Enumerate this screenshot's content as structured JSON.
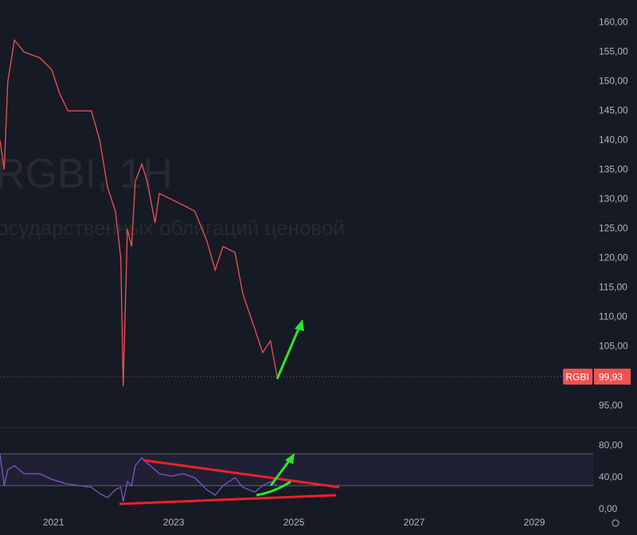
{
  "chart_data": [
    {
      "type": "line",
      "title": "RGBI, 1H",
      "subtitle": "осударственных облигаций ценовой",
      "x": [
        2020.11,
        2020.18,
        2020.24,
        2020.35,
        2020.51,
        2020.77,
        2020.97,
        2021.1,
        2021.24,
        2021.43,
        2021.63,
        2021.77,
        2021.9,
        2022.03,
        2022.12,
        2022.16,
        2022.23,
        2022.3,
        2022.36,
        2022.47,
        2022.56,
        2022.69,
        2022.76,
        2022.96,
        2023.16,
        2023.35,
        2023.55,
        2023.69,
        2023.82,
        2024.02,
        2024.15,
        2024.35,
        2024.48,
        2024.61,
        2024.72
      ],
      "series": [
        {
          "name": "RGBI",
          "color": "#ef5350",
          "values": [
            140,
            135,
            150,
            157,
            155,
            154,
            152,
            148,
            145,
            145,
            145,
            140,
            132,
            128,
            120,
            98.3,
            125,
            122,
            133,
            136,
            133,
            126,
            131,
            130,
            129,
            128,
            123,
            118,
            122,
            121,
            114,
            108,
            104,
            106,
            100
          ]
        }
      ],
      "last_price": {
        "value": 99.93,
        "label": "99,93"
      },
      "xlim": [
        2020.11,
        2029.98
      ],
      "ylim": [
        91.3,
        163.8
      ],
      "yticks": [
        {
          "value": 95,
          "label": "95,00"
        },
        {
          "value": 100,
          "label": "100,00"
        },
        {
          "value": 105,
          "label": "105,00"
        },
        {
          "value": 110,
          "label": "110,00"
        },
        {
          "value": 115,
          "label": "115,00"
        },
        {
          "value": 120,
          "label": "120,00"
        },
        {
          "value": 125,
          "label": "125,00"
        },
        {
          "value": 130,
          "label": "130,00"
        },
        {
          "value": 135,
          "label": "135,00"
        },
        {
          "value": 140,
          "label": "140,00"
        },
        {
          "value": 145,
          "label": "145,00"
        },
        {
          "value": 150,
          "label": "150,00"
        },
        {
          "value": 155,
          "label": "155,00"
        },
        {
          "value": 160,
          "label": "160,00"
        }
      ]
    },
    {
      "type": "line",
      "x": [
        2020.11,
        2020.18,
        2020.24,
        2020.35,
        2020.51,
        2020.77,
        2020.97,
        2021.1,
        2021.24,
        2021.43,
        2021.63,
        2021.77,
        2021.9,
        2022.03,
        2022.12,
        2022.16,
        2022.23,
        2022.3,
        2022.36,
        2022.47,
        2022.56,
        2022.69,
        2022.76,
        2022.96,
        2023.16,
        2023.35,
        2023.55,
        2023.69,
        2023.82,
        2024.02,
        2024.15,
        2024.35,
        2024.48,
        2024.61,
        2024.72
      ],
      "series": [
        {
          "color": "#7e57c2",
          "values": [
            70,
            30,
            50,
            55,
            45,
            45,
            38,
            35,
            32,
            30,
            28,
            20,
            15,
            25,
            28,
            10,
            35,
            30,
            55,
            65,
            58,
            50,
            45,
            42,
            45,
            40,
            25,
            18,
            30,
            40,
            28,
            22,
            30,
            35,
            30
          ]
        }
      ],
      "band": [
        30,
        70
      ],
      "xlim": [
        2020.11,
        2029.98
      ],
      "ylim": [
        -20,
        103
      ],
      "xticks": [
        2021,
        2023,
        2025,
        2027,
        2029
      ],
      "yticks": [
        {
          "value": 0,
          "label": "0,00"
        },
        {
          "value": 40,
          "label": "40,00"
        },
        {
          "value": 80,
          "label": "80,00"
        }
      ]
    }
  ]
}
